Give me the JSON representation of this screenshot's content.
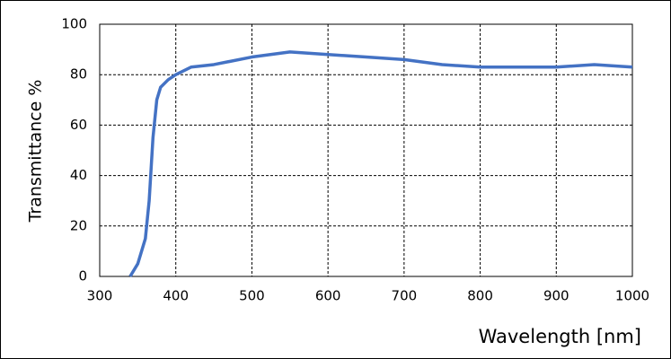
{
  "chart_data": {
    "type": "line",
    "x_label": "Wavelength [nm]",
    "y_label": "Transmittance %",
    "x": [
      340,
      350,
      360,
      365,
      370,
      375,
      380,
      390,
      400,
      420,
      450,
      500,
      550,
      600,
      650,
      700,
      750,
      800,
      850,
      900,
      950,
      1000
    ],
    "series": [
      {
        "color": "#4472c4",
        "values": [
          0,
          5,
          15,
          30,
          55,
          70,
          75,
          78,
          80,
          83,
          84,
          87,
          89,
          88,
          87,
          86,
          84,
          83,
          83,
          83,
          84,
          83
        ]
      }
    ],
    "xlim": [
      300,
      1000
    ],
    "xticks": [
      300,
      400,
      500,
      600,
      700,
      800,
      900,
      1000
    ],
    "ylim": [
      0,
      100
    ],
    "yticks": [
      0,
      20,
      40,
      60,
      80,
      100
    ],
    "grid": true
  }
}
